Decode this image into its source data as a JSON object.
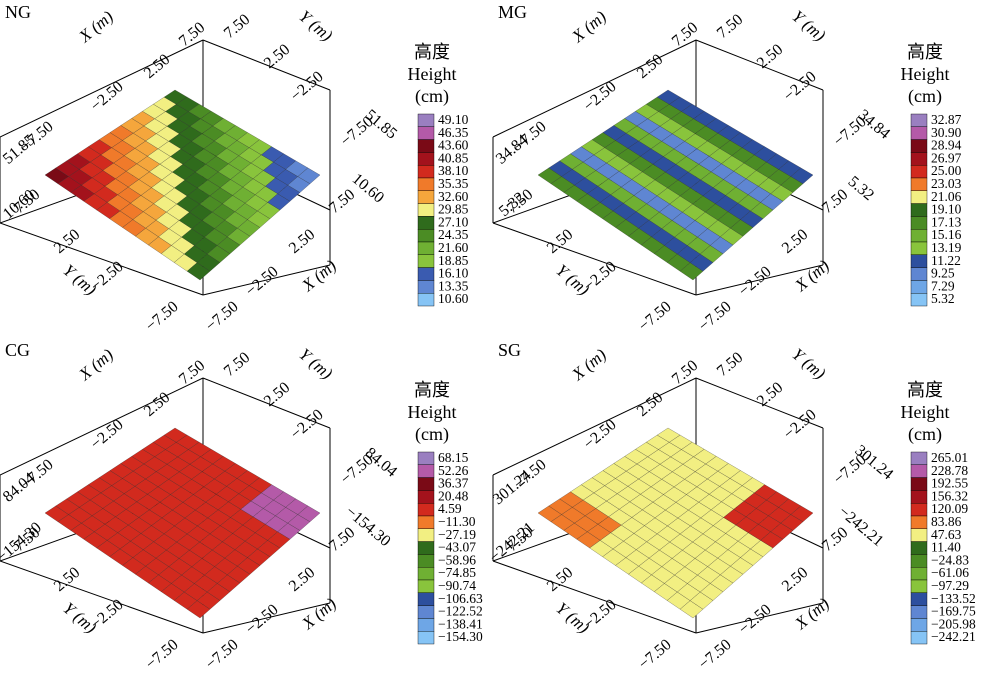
{
  "figure": {
    "legend_title_cn": "高度",
    "legend_title_en": "Height",
    "legend_unit": "(cm)",
    "x_axis_label": "X (m)",
    "y_axis_label": "Y (m)",
    "axis_ticks": [
      "−7.50",
      "−2.50",
      "2.50",
      "7.50"
    ]
  },
  "chart_data": [
    {
      "type": "heatmap",
      "panel_label": "NG",
      "z_range": [
        "10.60",
        "51.85"
      ],
      "legend_levels": [
        "49.10",
        "46.35",
        "43.60",
        "40.85",
        "38.10",
        "35.35",
        "32.60",
        "29.85",
        "27.10",
        "24.35",
        "21.60",
        "18.85",
        "16.10",
        "13.35",
        "10.60"
      ],
      "legend_colors": [
        "#9a7fc0",
        "#b45aa8",
        "#7a0a16",
        "#a3121c",
        "#d22a1e",
        "#f07a2a",
        "#f5a63c",
        "#f2ef82",
        "#2f6b1c",
        "#4b8c24",
        "#6fb033",
        "#89c43c",
        "#3a5bb0",
        "#5f86d2",
        "#86c4f5"
      ]
    },
    {
      "type": "heatmap",
      "panel_label": "MG",
      "z_range": [
        "5.32",
        "34.84"
      ],
      "legend_levels": [
        "32.87",
        "30.90",
        "28.94",
        "26.97",
        "25.00",
        "23.03",
        "21.06",
        "19.10",
        "17.13",
        "15.16",
        "13.19",
        "11.22",
        "9.25",
        "7.29",
        "5.32"
      ],
      "legend_colors": [
        "#9a7fc0",
        "#b45aa8",
        "#7a0a16",
        "#a3121c",
        "#d22a1e",
        "#f07a2a",
        "#f2ef82",
        "#2f6b1c",
        "#4b8c24",
        "#6fb033",
        "#89c43c",
        "#2d4f9e",
        "#5f86d2",
        "#6ea6e6",
        "#86c4f5"
      ]
    },
    {
      "type": "heatmap",
      "panel_label": "CG",
      "z_range": [
        "−154.30",
        "84.04"
      ],
      "legend_levels": [
        "68.15",
        "52.26",
        "36.37",
        "20.48",
        "4.59",
        "−11.30",
        "−27.19",
        "−43.07",
        "−58.96",
        "−74.85",
        "−90.74",
        "−106.63",
        "−122.52",
        "−138.41",
        "−154.30"
      ],
      "legend_colors": [
        "#9a7fc0",
        "#b45aa8",
        "#7a0a16",
        "#a3121c",
        "#d22a1e",
        "#f07a2a",
        "#f2ef82",
        "#2f6b1c",
        "#4b8c24",
        "#6fb033",
        "#89c43c",
        "#2d4f9e",
        "#5f86d2",
        "#6ea6e6",
        "#86c4f5"
      ]
    },
    {
      "type": "heatmap",
      "panel_label": "SG",
      "z_range": [
        "−242.21",
        "301.24"
      ],
      "legend_levels": [
        "265.01",
        "228.78",
        "192.55",
        "156.32",
        "120.09",
        "83.86",
        "47.63",
        "11.40",
        "−24.83",
        "−61.06",
        "−97.29",
        "−133.52",
        "−169.75",
        "−205.98",
        "−242.21"
      ],
      "legend_colors": [
        "#9a7fc0",
        "#b45aa8",
        "#7a0a16",
        "#a3121c",
        "#d22a1e",
        "#f07a2a",
        "#f2ef82",
        "#2f6b1c",
        "#4b8c24",
        "#6fb033",
        "#89c43c",
        "#2d4f9e",
        "#5f86d2",
        "#6ea6e6",
        "#86c4f5"
      ]
    }
  ]
}
